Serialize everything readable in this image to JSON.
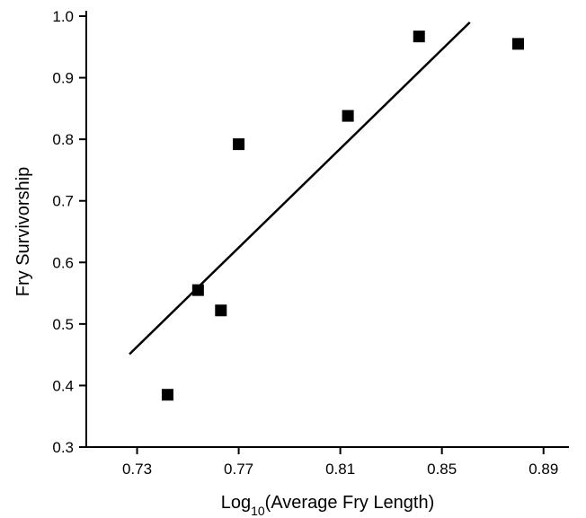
{
  "chart_data": {
    "type": "scatter",
    "title": "",
    "xlabel": "Log10(Average Fry Length)",
    "xlabel_parts": {
      "prefix": "Log",
      "subscript": "10",
      "suffix": "(Average Fry Length)"
    },
    "ylabel": "Fry Survivorship",
    "xlim": [
      0.71,
      0.9
    ],
    "ylim": [
      0.3,
      1.0
    ],
    "x_ticks": [
      0.73,
      0.77,
      0.81,
      0.85,
      0.89
    ],
    "x_tick_labels": [
      "0.73",
      "0.77",
      "0.81",
      "0.85",
      "0.89"
    ],
    "y_ticks": [
      0.3,
      0.4,
      0.5,
      0.6,
      0.7,
      0.8,
      0.9,
      1.0
    ],
    "y_tick_labels": [
      "0.3",
      "0.4",
      "0.5",
      "0.6",
      "0.7",
      "0.8",
      "0.9",
      "1.0"
    ],
    "grid": false,
    "legend": "none",
    "marker_color": "#000000",
    "series": [
      {
        "marker": "square",
        "points": [
          {
            "x": 0.742,
            "y": 0.385
          },
          {
            "x": 0.754,
            "y": 0.555
          },
          {
            "x": 0.763,
            "y": 0.522
          },
          {
            "x": 0.77,
            "y": 0.792
          },
          {
            "x": 0.813,
            "y": 0.838
          },
          {
            "x": 0.841,
            "y": 0.967
          },
          {
            "x": 0.88,
            "y": 0.955
          }
        ]
      }
    ],
    "fit_line": {
      "x": [
        0.727,
        0.861
      ],
      "y": [
        0.451,
        0.99
      ]
    }
  }
}
